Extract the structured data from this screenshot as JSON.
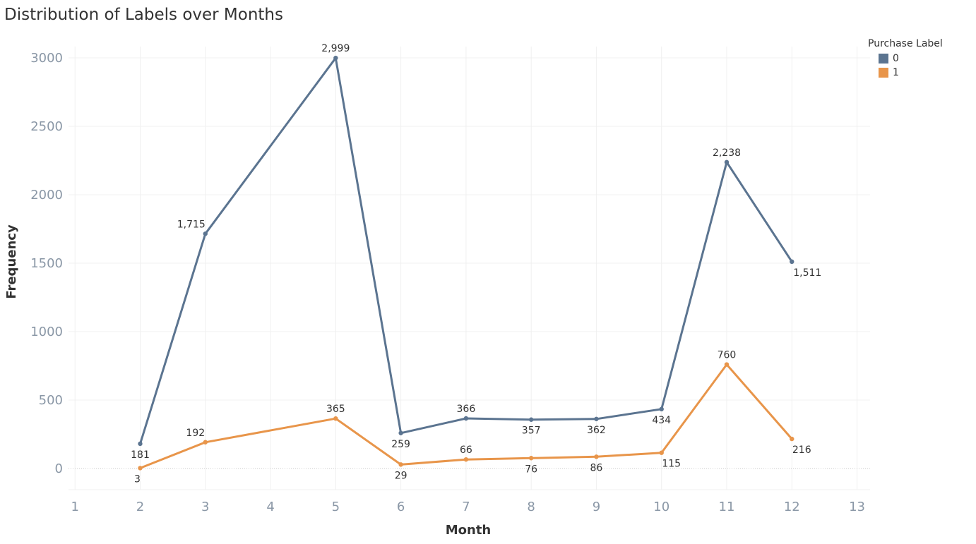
{
  "chart_data": {
    "type": "line",
    "title": "Distribution of Labels over Months",
    "xlabel": "Month",
    "ylabel": "Frequency",
    "xlim": [
      1,
      13
    ],
    "ylim": [
      0,
      3000
    ],
    "x_ticks": [
      1,
      2,
      3,
      4,
      5,
      6,
      7,
      8,
      9,
      10,
      11,
      12,
      13
    ],
    "y_ticks": [
      0,
      500,
      1000,
      1500,
      2000,
      2500,
      3000
    ],
    "grid": true,
    "legend": {
      "title": "Purchase Label",
      "placement": "top-right"
    },
    "series": [
      {
        "name": "0",
        "color": "#5b7490",
        "x": [
          2,
          3,
          5,
          6,
          7,
          8,
          9,
          10,
          11,
          12
        ],
        "values": [
          181,
          1715,
          2999,
          259,
          366,
          357,
          362,
          434,
          2238,
          1511
        ],
        "labels": [
          "181",
          "1,715",
          "2,999",
          "259",
          "366",
          "357",
          "362",
          "434",
          "2,238",
          "1,511"
        ]
      },
      {
        "name": "1",
        "color": "#e8954a",
        "x": [
          2,
          3,
          5,
          6,
          7,
          8,
          9,
          10,
          11,
          12
        ],
        "values": [
          3,
          192,
          365,
          29,
          66,
          76,
          86,
          115,
          760,
          216
        ],
        "labels": [
          "3",
          "192",
          "365",
          "29",
          "66",
          "76",
          "86",
          "115",
          "760",
          "216"
        ]
      }
    ]
  }
}
